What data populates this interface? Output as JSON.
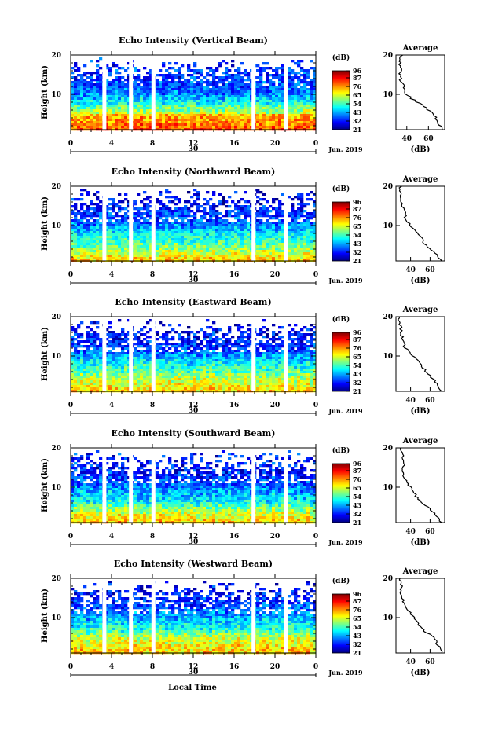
{
  "chart_data": [
    {
      "type": "heatmap",
      "title": "Echo Intensity (Vertical Beam)",
      "ylabel": "Height (km)",
      "yticks": [
        "20",
        "10"
      ],
      "ylim": [
        1,
        20
      ],
      "xlim": [
        0,
        24
      ],
      "xticks": [
        "0",
        "4",
        "8",
        "12",
        "16",
        "20",
        "0"
      ],
      "date_label": "30",
      "month_label": "Jun. 2019",
      "cbar_title": "(dB)",
      "cbar_ticks": [
        "96",
        "87",
        "76",
        "65",
        "54",
        "43",
        "32",
        "21"
      ],
      "clim": [
        21,
        96
      ],
      "data_gaps_hours": [
        3.3,
        5.9,
        8.1,
        17.9,
        21.1
      ],
      "profile": {
        "title": "Average",
        "xlabel": "(dB)",
        "xticks": [
          "40",
          "60"
        ],
        "xlim": [
          30,
          75
        ],
        "heights_km": [
          1,
          2,
          3,
          4,
          5,
          6,
          7,
          8,
          9,
          10,
          11,
          12,
          13,
          14,
          15,
          16,
          17,
          18,
          19,
          20
        ],
        "values_db": [
          73,
          71,
          68,
          67,
          64,
          60,
          56,
          50,
          44,
          40,
          38,
          37,
          36,
          34,
          34,
          35,
          33,
          34,
          33,
          36
        ]
      }
    },
    {
      "type": "heatmap",
      "title": "Echo Intensity (Northward Beam)",
      "ylabel": "Height (km)",
      "yticks": [
        "20",
        "10"
      ],
      "ylim": [
        1,
        20
      ],
      "xlim": [
        0,
        24
      ],
      "xticks": [
        "0",
        "4",
        "8",
        "12",
        "16",
        "20",
        "0"
      ],
      "date_label": "30",
      "month_label": "Jun. 2019",
      "cbar_title": "(dB)",
      "cbar_ticks": [
        "96",
        "87",
        "76",
        "65",
        "54",
        "43",
        "32",
        "21"
      ],
      "clim": [
        21,
        96
      ],
      "data_gaps_hours": [
        3.3,
        5.9,
        8.1,
        17.9,
        21.1
      ],
      "profile": {
        "title": "Average",
        "xlabel": "(dB)",
        "xticks": [
          "40",
          "60"
        ],
        "xlim": [
          25,
          75
        ],
        "heights_km": [
          1,
          2,
          3,
          4,
          5,
          6,
          7,
          8,
          9,
          10,
          11,
          12,
          13,
          14,
          15,
          16,
          17,
          18,
          19,
          20
        ],
        "values_db": [
          72,
          69,
          64,
          60,
          56,
          53,
          51,
          48,
          44,
          40,
          37,
          35,
          34,
          33,
          31,
          30,
          30,
          29,
          28,
          30
        ]
      }
    },
    {
      "type": "heatmap",
      "title": "Echo Intensity (Eastward Beam)",
      "ylabel": "Height (km)",
      "yticks": [
        "20",
        "10"
      ],
      "ylim": [
        1,
        20
      ],
      "xlim": [
        0,
        24
      ],
      "xticks": [
        "0",
        "4",
        "8",
        "12",
        "16",
        "20",
        "0"
      ],
      "date_label": "30",
      "month_label": "Jun. 2019",
      "cbar_title": "(dB)",
      "cbar_ticks": [
        "96",
        "87",
        "76",
        "65",
        "54",
        "43",
        "32",
        "21"
      ],
      "clim": [
        21,
        96
      ],
      "data_gaps_hours": [
        3.3,
        5.9,
        8.1,
        17.9,
        21.1
      ],
      "profile": {
        "title": "Average",
        "xlabel": "(dB)",
        "xticks": [
          "40",
          "60"
        ],
        "xlim": [
          25,
          75
        ],
        "heights_km": [
          1,
          2,
          3,
          4,
          5,
          6,
          7,
          8,
          9,
          10,
          11,
          12,
          13,
          14,
          15,
          16,
          17,
          18,
          19,
          20
        ],
        "values_db": [
          72,
          69,
          66,
          64,
          60,
          56,
          53,
          50,
          46,
          42,
          38,
          35,
          33,
          32,
          31,
          30,
          30,
          29,
          28,
          30
        ]
      }
    },
    {
      "type": "heatmap",
      "title": "Echo Intensity (Southward Beam)",
      "ylabel": "Height (km)",
      "yticks": [
        "20",
        "10"
      ],
      "ylim": [
        1,
        20
      ],
      "xlim": [
        0,
        24
      ],
      "xticks": [
        "0",
        "4",
        "8",
        "12",
        "16",
        "20",
        "0"
      ],
      "date_label": "30",
      "month_label": "Jun. 2019",
      "cbar_title": "(dB)",
      "cbar_ticks": [
        "96",
        "87",
        "76",
        "65",
        "54",
        "43",
        "32",
        "21"
      ],
      "clim": [
        21,
        96
      ],
      "data_gaps_hours": [
        3.3,
        5.9,
        8.1,
        17.9,
        21.1
      ],
      "profile": {
        "title": "Average",
        "xlabel": "(dB)",
        "xticks": [
          "40",
          "60"
        ],
        "xlim": [
          25,
          75
        ],
        "heights_km": [
          1,
          2,
          3,
          4,
          5,
          6,
          7,
          8,
          9,
          10,
          11,
          12,
          13,
          14,
          15,
          16,
          17,
          18,
          19,
          20
        ],
        "values_db": [
          72,
          69,
          66,
          62,
          57,
          51,
          47,
          45,
          43,
          40,
          37,
          35,
          33,
          32,
          31,
          34,
          31,
          33,
          31,
          30
        ]
      }
    },
    {
      "type": "heatmap",
      "title": "Echo Intensity (Westward Beam)",
      "ylabel": "Height (km)",
      "yticks": [
        "20",
        "10"
      ],
      "ylim": [
        1,
        20
      ],
      "xlim": [
        0,
        24
      ],
      "xticks": [
        "0",
        "4",
        "8",
        "12",
        "16",
        "20",
        "0"
      ],
      "date_label": "30",
      "month_label": "Jun. 2019",
      "cbar_title": "(dB)",
      "cbar_ticks": [
        "96",
        "87",
        "76",
        "65",
        "54",
        "43",
        "32",
        "21"
      ],
      "clim": [
        21,
        96
      ],
      "data_gaps_hours": [
        3.3,
        5.9,
        8.1,
        17.9,
        21.1
      ],
      "profile": {
        "title": "Average",
        "xlabel": "(dB)",
        "xticks": [
          "40",
          "60"
        ],
        "xlim": [
          25,
          75
        ],
        "heights_km": [
          1,
          2,
          3,
          4,
          5,
          6,
          7,
          8,
          9,
          10,
          11,
          12,
          13,
          14,
          15,
          16,
          17,
          18,
          19,
          20
        ],
        "values_db": [
          72,
          70,
          68,
          66,
          63,
          58,
          52,
          49,
          46,
          43,
          40,
          37,
          35,
          33,
          32,
          31,
          30,
          31,
          30,
          29
        ]
      }
    }
  ],
  "figure": {
    "xlabel": "Local Time"
  }
}
